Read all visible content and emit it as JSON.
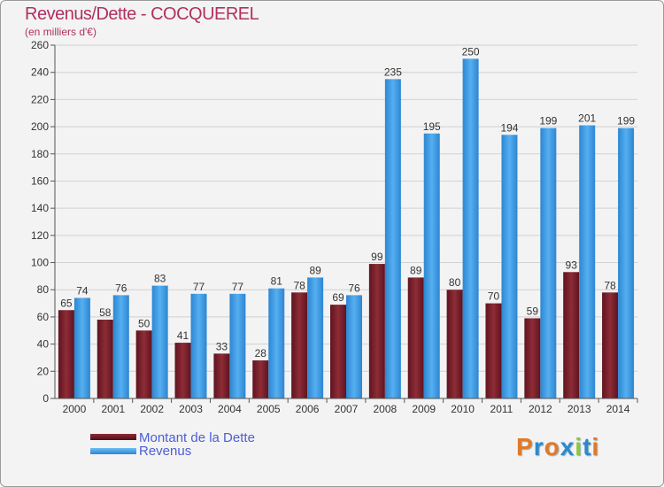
{
  "title": "Revenus/Dette - COCQUEREL",
  "subtitle": "(en milliers d'€)",
  "colors": {
    "dette": "#7a1f2a",
    "revenus": "#3e9ce6",
    "brand": "#b03060"
  },
  "legend": {
    "dette": "Montant de la Dette",
    "revenus": "Revenus"
  },
  "brand": {
    "letters": [
      "P",
      "r",
      "o",
      "x",
      "i",
      "t",
      "i"
    ],
    "colors": [
      "#e07a2a",
      "#2a8ad0",
      "#e07a2a",
      "#2a8ad0",
      "#8cc83c",
      "#2a8ad0",
      "#e07a2a"
    ]
  },
  "chart_data": {
    "type": "bar",
    "title": "Revenus/Dette - COCQUEREL",
    "ylabel": "(en milliers d'€)",
    "xlabel": "",
    "categories": [
      "2000",
      "2001",
      "2002",
      "2003",
      "2004",
      "2005",
      "2006",
      "2007",
      "2008",
      "2009",
      "2010",
      "2011",
      "2012",
      "2013",
      "2014"
    ],
    "series": [
      {
        "name": "Montant de la Dette",
        "values": [
          65,
          58,
          50,
          41,
          33,
          28,
          78,
          69,
          99,
          89,
          80,
          70,
          59,
          93,
          78
        ]
      },
      {
        "name": "Revenus",
        "values": [
          74,
          76,
          83,
          77,
          77,
          81,
          89,
          76,
          235,
          195,
          250,
          194,
          199,
          201,
          199
        ]
      }
    ],
    "ylim": [
      0,
      260
    ],
    "yticks": [
      0,
      20,
      40,
      60,
      80,
      100,
      120,
      140,
      160,
      180,
      200,
      220,
      240,
      260
    ],
    "grid": true,
    "legend_position": "bottom-left"
  }
}
